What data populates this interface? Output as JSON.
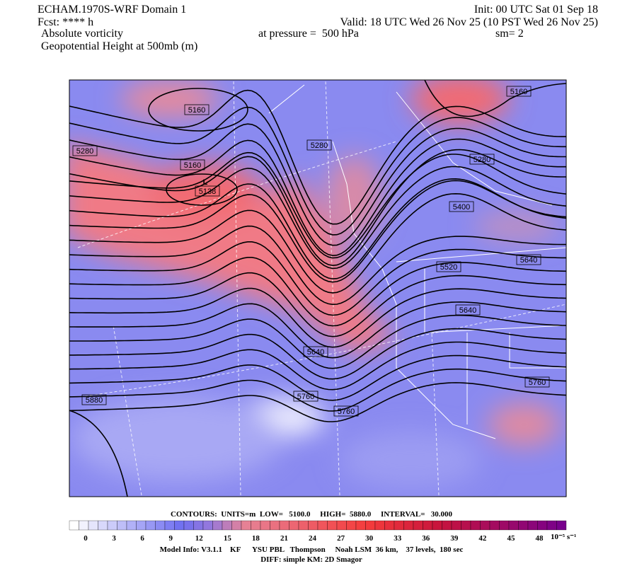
{
  "header": {
    "model": "ECHAM.1970S-WRF Domain 1",
    "forecast": "Fcst: **** h",
    "field1": "Absolute vorticity",
    "field2": "Geopotential Height at 500mb (m)",
    "init": "Init: 00 UTC Sat 01 Sep 18",
    "valid": "Valid: 18 UTC Wed 26 Nov 25 (10 PST Wed 26 Nov 25)",
    "pressure": "at pressure =  500 hPa",
    "smoothing": "sm= 2"
  },
  "map": {
    "contour_labels": [
      5160,
      5280,
      5160,
      5138,
      5280,
      5160,
      5280,
      5400,
      5520,
      5640,
      5640,
      5640,
      5760,
      5760,
      5760,
      5880
    ],
    "low_marker": "L"
  },
  "contour_info": "CONTOURS:  UNITS=m  LOW=   5100.0     HIGH=  5880.0     INTERVAL=   30.000",
  "colorbar": {
    "ticks": [
      0,
      3,
      6,
      9,
      12,
      15,
      18,
      21,
      24,
      27,
      30,
      33,
      36,
      39,
      42,
      45,
      48
    ],
    "units": "10⁻⁵ s⁻¹"
  },
  "footer": {
    "model_info": "Model Info: V3.1.1    KF      YSU PBL   Thompson     Noah LSM  36 km,    37 levels,  180 sec",
    "diff": "DIFF: simple KM: 2D Smagor"
  }
}
